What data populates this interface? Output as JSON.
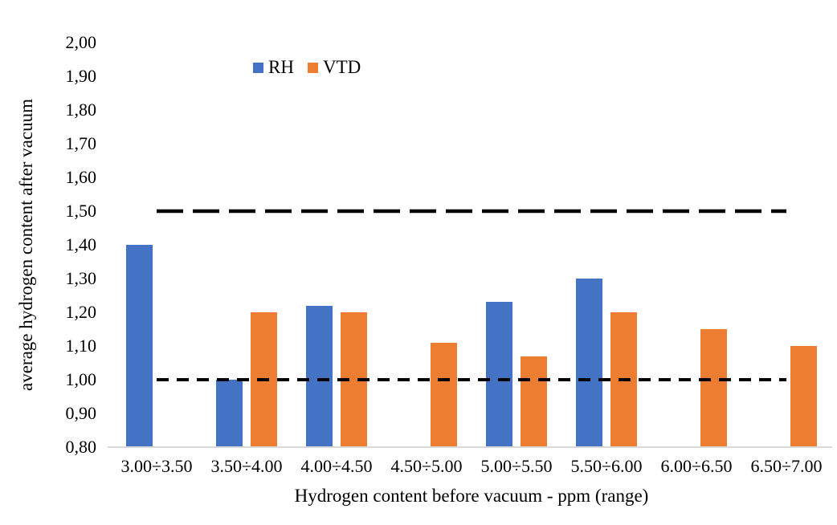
{
  "chart_data": {
    "type": "bar",
    "title": "",
    "xlabel": "Hydrogen content before vacuum - ppm (range)",
    "ylabel": "average hydrogen content after vacuum",
    "categories": [
      "3.00÷3.50",
      "3.50÷4.00",
      "4.00÷4.50",
      "4.50÷5.00",
      "5.00÷5.50",
      "5.50÷6.00",
      "6.00÷6.50",
      "6.50÷7.00"
    ],
    "series": [
      {
        "name": "RH",
        "color": "#4472C4",
        "values": [
          1.4,
          1.0,
          1.22,
          null,
          1.23,
          1.3,
          null,
          null
        ]
      },
      {
        "name": "VTD",
        "color": "#ED7D31",
        "values": [
          null,
          1.2,
          1.2,
          1.11,
          1.07,
          1.2,
          1.15,
          1.1
        ]
      }
    ],
    "reference_lines": [
      {
        "value": 1.5,
        "style": "long-dash",
        "color": "#000000"
      },
      {
        "value": 1.0,
        "style": "short-dash",
        "color": "#000000"
      }
    ],
    "ylim": [
      0.8,
      2.0
    ],
    "ytick_step": 0.1,
    "ytick_labels": [
      "0,80",
      "0,90",
      "1,00",
      "1,10",
      "1,20",
      "1,30",
      "1,40",
      "1,50",
      "1,60",
      "1,70",
      "1,80",
      "1,90",
      "2,00"
    ],
    "legend_position": "top",
    "grid": false,
    "axis_line_color": "#D9D9D9",
    "background": "#FFFFFF"
  }
}
